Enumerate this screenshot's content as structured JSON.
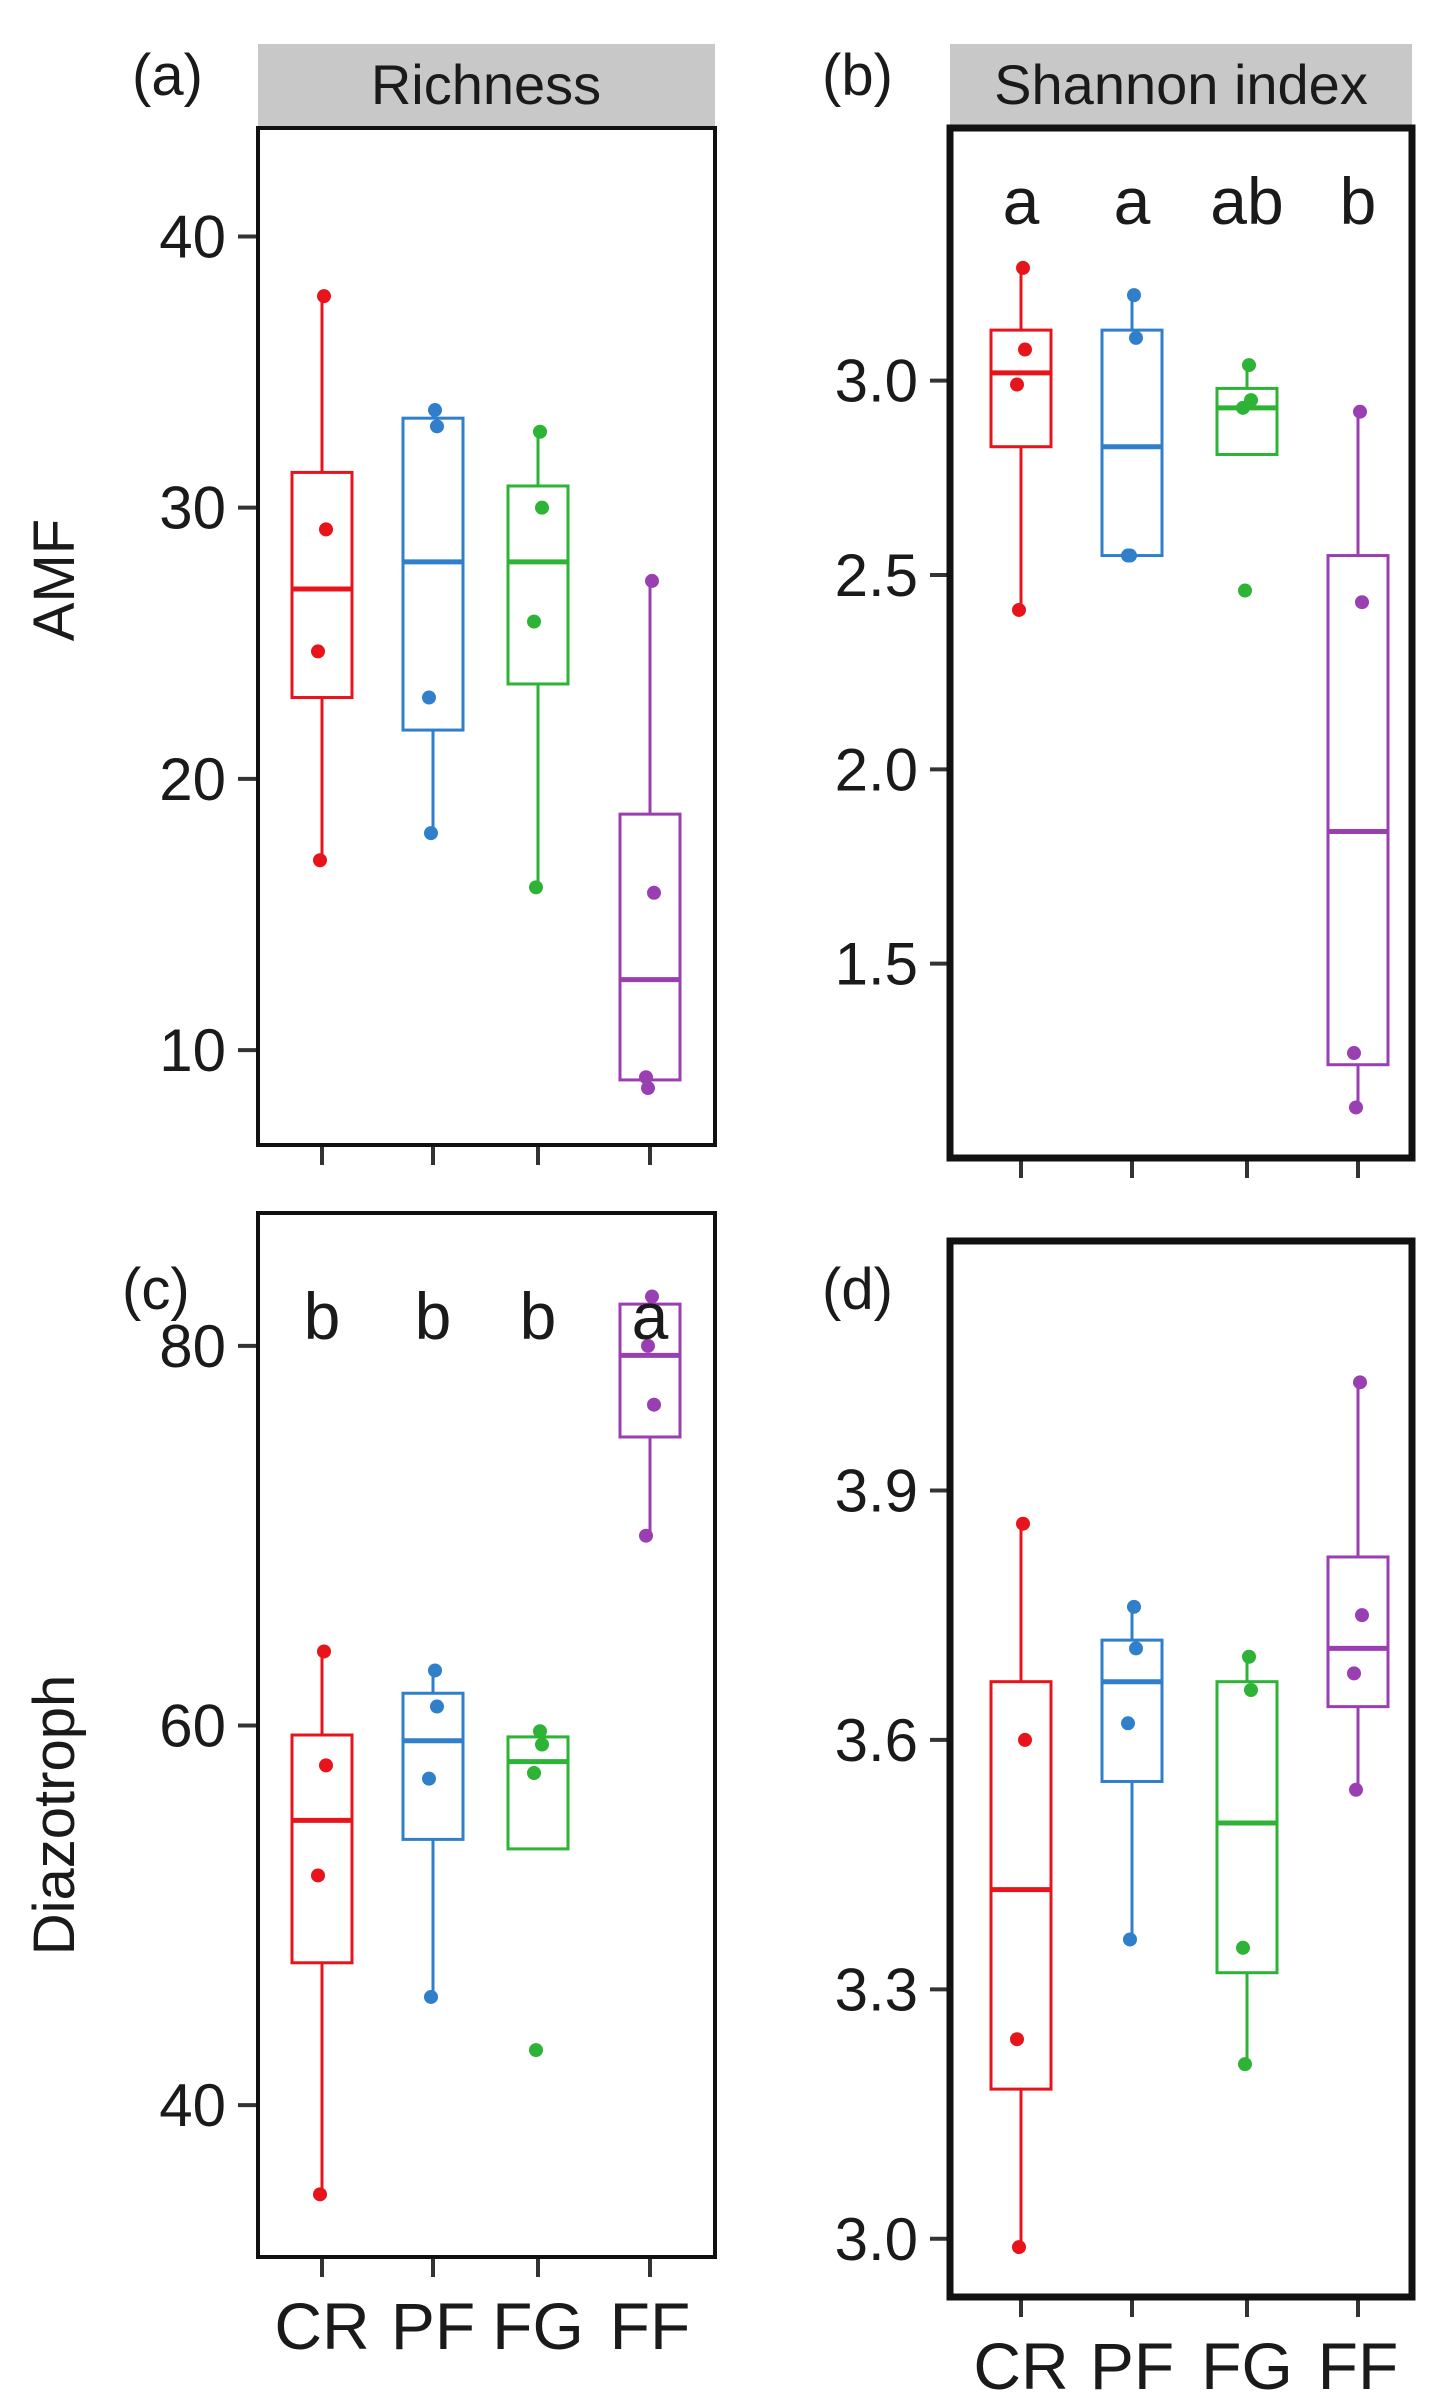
{
  "figure": {
    "row_labels": [
      "AMF",
      "Diazotroph"
    ],
    "column_strips": [
      "Richness",
      "Shannon index"
    ]
  },
  "chart_data": [
    {
      "type": "boxplot",
      "panel": "(a)",
      "strip": "Richness",
      "ylabel": "AMF",
      "categories": [
        "CR",
        "PF",
        "FG",
        "FF"
      ],
      "colors": [
        "#e8141c",
        "#2f7fcb",
        "#2db335",
        "#9a3fb1"
      ],
      "ylim": [
        6.5,
        44
      ],
      "yticks": [
        10,
        20,
        30,
        40
      ],
      "letters": [],
      "boxes": [
        {
          "q1": 23,
          "median": 27,
          "q3": 31.3,
          "whisker_low": 17,
          "whisker_high": 37.8
        },
        {
          "q1": 21.8,
          "median": 28,
          "q3": 33.3,
          "whisker_low": 18,
          "whisker_high": 33.6
        },
        {
          "q1": 23.5,
          "median": 28,
          "q3": 30.8,
          "whisker_low": 16,
          "whisker_high": 32.8
        },
        {
          "q1": 8.9,
          "median": 12.6,
          "q3": 18.7,
          "whisker_low": 8.9,
          "whisker_high": 27.3
        }
      ],
      "points": [
        [
          37.8,
          29.2,
          24.7,
          17
        ],
        [
          33.6,
          33,
          23,
          18
        ],
        [
          32.8,
          30,
          25.8,
          16
        ],
        [
          27.3,
          15.8,
          9,
          8.6
        ]
      ]
    },
    {
      "type": "boxplot",
      "panel": "(b)",
      "strip": "Shannon index",
      "ylabel": "",
      "categories": [
        "CR",
        "PF",
        "FG",
        "FF"
      ],
      "colors": [
        "#e8141c",
        "#2f7fcb",
        "#2db335",
        "#9a3fb1"
      ],
      "ylim": [
        1.0,
        3.65
      ],
      "yticks": [
        1.5,
        2.0,
        2.5,
        3.0
      ],
      "letters": [
        "a",
        "a",
        "ab",
        "b"
      ],
      "boxes": [
        {
          "q1": 2.83,
          "median": 3.02,
          "q3": 3.13,
          "whisker_low": 2.41,
          "whisker_high": 3.29
        },
        {
          "q1": 2.55,
          "median": 2.83,
          "q3": 3.13,
          "whisker_low": 2.55,
          "whisker_high": 3.22
        },
        {
          "q1": 2.81,
          "median": 2.93,
          "q3": 2.98,
          "whisker_low": 2.81,
          "whisker_high": 3.04
        },
        {
          "q1": 1.24,
          "median": 1.84,
          "q3": 2.55,
          "whisker_low": 1.13,
          "whisker_high": 2.92
        }
      ],
      "points": [
        [
          3.29,
          3.08,
          2.99,
          2.41
        ],
        [
          3.22,
          3.11,
          2.55,
          2.55
        ],
        [
          3.04,
          2.95,
          2.93,
          2.46
        ],
        [
          2.92,
          2.43,
          1.27,
          1.13
        ]
      ]
    },
    {
      "type": "boxplot",
      "panel": "(c)",
      "strip": "",
      "ylabel": "Diazotroph",
      "categories": [
        "CR",
        "PF",
        "FG",
        "FF"
      ],
      "colors": [
        "#e8141c",
        "#2f7fcb",
        "#2db335",
        "#9a3fb1"
      ],
      "ylim": [
        32,
        87
      ],
      "yticks": [
        40,
        60,
        80
      ],
      "letters": [
        "b",
        "b",
        "b",
        "a"
      ],
      "boxes": [
        {
          "q1": 47.5,
          "median": 55,
          "q3": 59.5,
          "whisker_low": 35.3,
          "whisker_high": 63.9
        },
        {
          "q1": 54,
          "median": 59.2,
          "q3": 61.7,
          "whisker_low": 45.7,
          "whisker_high": 62.9
        },
        {
          "q1": 53.5,
          "median": 58.1,
          "q3": 59.4,
          "whisker_low": 53.5,
          "whisker_high": 59.7
        },
        {
          "q1": 75.2,
          "median": 79.5,
          "q3": 82.2,
          "whisker_low": 70,
          "whisker_high": 82.6
        }
      ],
      "points": [
        [
          63.9,
          57.9,
          52.1,
          35.3
        ],
        [
          62.9,
          61,
          57.2,
          45.7
        ],
        [
          59.7,
          59,
          57.5,
          42.9
        ],
        [
          82.6,
          76.9,
          70,
          80
        ]
      ]
    },
    {
      "type": "boxplot",
      "panel": "(d)",
      "strip": "",
      "ylabel": "",
      "categories": [
        "CR",
        "PF",
        "FG",
        "FF"
      ],
      "colors": [
        "#e8141c",
        "#2f7fcb",
        "#2db335",
        "#9a3fb1"
      ],
      "ylim": [
        2.93,
        4.2
      ],
      "yticks": [
        3.0,
        3.3,
        3.6,
        3.9
      ],
      "letters": [],
      "boxes": [
        {
          "q1": 3.18,
          "median": 3.42,
          "q3": 3.67,
          "whisker_low": 2.99,
          "whisker_high": 3.86
        },
        {
          "q1": 3.55,
          "median": 3.67,
          "q3": 3.72,
          "whisker_low": 3.36,
          "whisker_high": 3.76
        },
        {
          "q1": 3.32,
          "median": 3.5,
          "q3": 3.67,
          "whisker_low": 3.21,
          "whisker_high": 3.7
        },
        {
          "q1": 3.64,
          "median": 3.71,
          "q3": 3.82,
          "whisker_low": 3.54,
          "whisker_high": 4.03
        }
      ],
      "points": [
        [
          3.86,
          3.6,
          3.24,
          2.99
        ],
        [
          3.76,
          3.71,
          3.62,
          3.36
        ],
        [
          3.7,
          3.66,
          3.35,
          3.21
        ],
        [
          4.03,
          3.75,
          3.68,
          3.54
        ]
      ]
    }
  ]
}
